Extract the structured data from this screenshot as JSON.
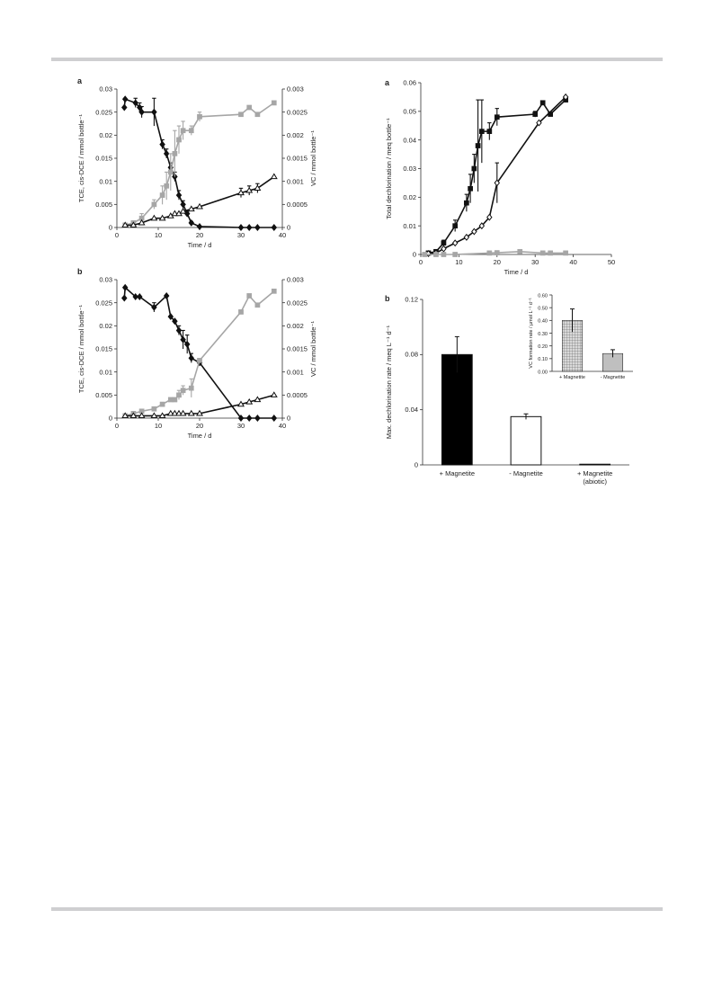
{
  "chart_data": [
    {
      "id": "top-left",
      "type": "line",
      "panel_label": "a",
      "xlabel": "Time / d",
      "ylabel": "TCE, cis-DCE / mmol bottle⁻¹",
      "y2label": "VC / mmol bottle⁻¹",
      "xlim": [
        0,
        40
      ],
      "ylim": [
        0,
        0.03
      ],
      "y2lim": [
        0,
        0.003
      ],
      "xticks": [
        "0",
        "10",
        "20",
        "30",
        "40"
      ],
      "yticks": [
        "0",
        "0.005",
        "0.01",
        "0.015",
        "0.02",
        "0.025",
        "0.03"
      ],
      "y2ticks": [
        "0",
        "0.0005",
        "0.001",
        "0.0015",
        "0.002",
        "0.0025",
        "0.003"
      ],
      "series": [
        {
          "axis": "y",
          "color": "#111111",
          "marker": "diamond",
          "points": [
            [
              1.8,
              0.026
            ],
            [
              2,
              0.0278
            ],
            [
              4.5,
              0.027
            ],
            [
              5.5,
              0.026
            ],
            [
              6,
              0.025
            ],
            [
              9,
              0.025
            ],
            [
              11,
              0.018
            ],
            [
              12,
              0.016
            ],
            [
              13,
              0.013
            ],
            [
              14,
              0.011
            ],
            [
              15,
              0.007
            ],
            [
              16,
              0.005
            ],
            [
              17,
              0.003
            ],
            [
              18,
              0.001
            ],
            [
              20,
              0.0002
            ],
            [
              30,
              0
            ],
            [
              32,
              0
            ],
            [
              34,
              0
            ],
            [
              38,
              0
            ]
          ],
          "err": [
            0,
            0,
            0.001,
            0.001,
            0.0012,
            0.003,
            0.001,
            0.001,
            0.001,
            0.001,
            0.001,
            0.0008,
            0.0005,
            0.0003,
            0,
            0,
            0,
            0,
            0
          ]
        },
        {
          "axis": "y2",
          "color": "#a6a6a6",
          "marker": "square",
          "points": [
            [
              2,
              5e-05
            ],
            [
              4,
              0.0001
            ],
            [
              6,
              0.0002
            ],
            [
              9,
              0.0005
            ],
            [
              11,
              0.0007
            ],
            [
              12,
              0.0009
            ],
            [
              13,
              0.0012
            ],
            [
              14,
              0.0016
            ],
            [
              15,
              0.0019
            ],
            [
              16,
              0.0021
            ],
            [
              18,
              0.0021
            ],
            [
              20,
              0.0024
            ],
            [
              30,
              0.00245
            ],
            [
              32,
              0.0026
            ],
            [
              34,
              0.00245
            ],
            [
              38,
              0.0027
            ]
          ],
          "err": [
            0,
            0,
            0.0001,
            0.0001,
            0.0002,
            0.0003,
            0.0004,
            0.0005,
            0.0003,
            0.0002,
            0.0001,
            0.0001,
            0,
            0,
            0,
            0
          ]
        },
        {
          "axis": "y2",
          "color": "#111111",
          "marker": "triangle-open",
          "points": [
            [
              2,
              5e-05
            ],
            [
              4,
              5e-05
            ],
            [
              6,
              0.0001
            ],
            [
              9,
              0.0002
            ],
            [
              11,
              0.0002
            ],
            [
              13,
              0.00025
            ],
            [
              14,
              0.0003
            ],
            [
              15,
              0.0003
            ],
            [
              16,
              0.00035
            ],
            [
              18,
              0.0004
            ],
            [
              20,
              0.00045
            ],
            [
              30,
              0.00075
            ],
            [
              32,
              0.0008
            ],
            [
              34,
              0.00085
            ],
            [
              38,
              0.0011
            ]
          ],
          "err": [
            0,
            0,
            0,
            0,
            0,
            0,
            0,
            0,
            0,
            0,
            0,
            0.0001,
            0.0001,
            0.0001,
            0
          ]
        }
      ]
    },
    {
      "id": "bottom-left",
      "type": "line",
      "panel_label": "b",
      "xlabel": "Time / d",
      "ylabel": "TCE, cis-DCE / mmol bottle⁻¹",
      "y2label": "VC / mmol bottle⁻¹",
      "xlim": [
        0,
        40
      ],
      "ylim": [
        0,
        0.03
      ],
      "y2lim": [
        0,
        0.003
      ],
      "xticks": [
        "0",
        "10",
        "20",
        "30",
        "40"
      ],
      "yticks": [
        "0",
        "0.005",
        "0.01",
        "0.015",
        "0.02",
        "0.025",
        "0.03"
      ],
      "y2ticks": [
        "0",
        "0.0005",
        "0.001",
        "0.0015",
        "0.002",
        "0.0025",
        "0.003"
      ],
      "series": [
        {
          "axis": "y",
          "color": "#111111",
          "marker": "diamond",
          "points": [
            [
              1.8,
              0.026
            ],
            [
              2,
              0.0283
            ],
            [
              4.5,
              0.0263
            ],
            [
              5.5,
              0.0263
            ],
            [
              9,
              0.024
            ],
            [
              12,
              0.0265
            ],
            [
              13,
              0.022
            ],
            [
              14,
              0.021
            ],
            [
              15,
              0.019
            ],
            [
              16,
              0.017
            ],
            [
              17,
              0.016
            ],
            [
              18,
              0.013
            ],
            [
              20,
              0.012
            ],
            [
              30,
              0
            ],
            [
              32,
              0
            ],
            [
              34,
              0
            ],
            [
              38,
              0
            ]
          ],
          "err": [
            0,
            0,
            0,
            0,
            0.001,
            0,
            0,
            0,
            0.001,
            0.002,
            0.002,
            0.001,
            0,
            0,
            0,
            0,
            0
          ]
        },
        {
          "axis": "y2",
          "color": "#a6a6a6",
          "marker": "square",
          "points": [
            [
              2,
              5e-05
            ],
            [
              4,
              0.0001
            ],
            [
              6,
              0.00015
            ],
            [
              9,
              0.0002
            ],
            [
              11,
              0.0003
            ],
            [
              13,
              0.0004
            ],
            [
              14,
              0.0004
            ],
            [
              15,
              0.0005
            ],
            [
              16,
              0.0006
            ],
            [
              18,
              0.00065
            ],
            [
              20,
              0.00125
            ],
            [
              30,
              0.0023
            ],
            [
              32,
              0.00265
            ],
            [
              34,
              0.00245
            ],
            [
              38,
              0.00275
            ]
          ],
          "err": [
            0,
            0,
            0,
            0,
            0,
            0,
            0,
            0.0001,
            0.0001,
            0.0002,
            0,
            0,
            0,
            0,
            0
          ]
        },
        {
          "axis": "y2",
          "color": "#111111",
          "marker": "triangle-open",
          "points": [
            [
              2,
              5e-05
            ],
            [
              4,
              5e-05
            ],
            [
              6,
              5e-05
            ],
            [
              9,
              5e-05
            ],
            [
              11,
              5e-05
            ],
            [
              13,
              0.0001
            ],
            [
              14,
              0.0001
            ],
            [
              15,
              0.0001
            ],
            [
              16,
              0.0001
            ],
            [
              18,
              0.0001
            ],
            [
              20,
              0.0001
            ],
            [
              30,
              0.0003
            ],
            [
              32,
              0.00035
            ],
            [
              34,
              0.0004
            ],
            [
              38,
              0.0005
            ]
          ],
          "err": [
            0,
            0,
            0,
            0,
            0,
            0,
            0,
            0,
            0,
            0,
            0,
            0,
            0,
            0,
            0
          ]
        }
      ]
    },
    {
      "id": "top-right",
      "type": "line",
      "panel_label": "a",
      "xlabel": "Time / d",
      "ylabel": "Total  dechlorination / meq bottle⁻¹",
      "xlim": [
        0,
        50
      ],
      "ylim": [
        0,
        0.06
      ],
      "xticks": [
        "0",
        "10",
        "20",
        "30",
        "40",
        "50"
      ],
      "yticks": [
        "0",
        "0.01",
        "0.02",
        "0.03",
        "0.04",
        "0.05",
        "0.06"
      ],
      "series": [
        {
          "color": "#111111",
          "marker": "square",
          "points": [
            [
              2,
              0.0005
            ],
            [
              4,
              0.001
            ],
            [
              6,
              0.004
            ],
            [
              9,
              0.01
            ],
            [
              12,
              0.018
            ],
            [
              13,
              0.023
            ],
            [
              14,
              0.03
            ],
            [
              15,
              0.038
            ],
            [
              16,
              0.043
            ],
            [
              18,
              0.043
            ],
            [
              20,
              0.048
            ],
            [
              30,
              0.049
            ],
            [
              32,
              0.053
            ],
            [
              34,
              0.049
            ],
            [
              38,
              0.054
            ]
          ],
          "err": [
            0,
            0,
            0.001,
            0.002,
            0.003,
            0.005,
            0.005,
            0.016,
            0.011,
            0.003,
            0.003,
            0.001,
            0,
            0,
            0
          ]
        },
        {
          "color": "#111111",
          "marker": "diamond-open",
          "points": [
            [
              2,
              0.0003
            ],
            [
              4,
              0.0005
            ],
            [
              6,
              0.002
            ],
            [
              9,
              0.004
            ],
            [
              12,
              0.006
            ],
            [
              14,
              0.008
            ],
            [
              16,
              0.01
            ],
            [
              18,
              0.013
            ],
            [
              20,
              0.025
            ],
            [
              31,
              0.046
            ],
            [
              38,
              0.055
            ]
          ],
          "err": [
            0,
            0,
            0,
            0,
            0,
            0,
            0,
            0,
            0.007,
            0,
            0
          ]
        },
        {
          "color": "#a6a6a6",
          "marker": "square",
          "points": [
            [
              1,
              0
            ],
            [
              4,
              0
            ],
            [
              6,
              0
            ],
            [
              9,
              0
            ],
            [
              18,
              0.0005
            ],
            [
              20,
              0.0006
            ],
            [
              26,
              0.001
            ],
            [
              32,
              0.0005
            ],
            [
              34,
              0.0005
            ],
            [
              38,
              0.0005
            ]
          ],
          "err": [
            0,
            0,
            0,
            0,
            0,
            0,
            0,
            0,
            0,
            0
          ]
        }
      ]
    },
    {
      "id": "bottom-right",
      "type": "bar",
      "panel_label": "b",
      "ylabel": "Max. dechlorination rate / meq L⁻¹ d⁻¹",
      "ylim": [
        0,
        0.12
      ],
      "yticks": [
        "0",
        "0.04",
        "0.08",
        "0.12"
      ],
      "categories": [
        "+ Magnetite",
        "- Magnetite",
        "+ Magnetite\n(abiotic)"
      ],
      "values": [
        0.08,
        0.035,
        0.0005
      ],
      "errors": [
        0.013,
        0.002,
        0
      ],
      "fills": [
        "#000000",
        "#ffffff",
        "#ffffff"
      ]
    },
    {
      "id": "inset",
      "type": "bar",
      "ylabel": "VC formation rate / µmol L⁻¹ d⁻¹",
      "ylim": [
        0,
        0.6
      ],
      "yticks": [
        "0.00",
        "0.10",
        "0.20",
        "0.30",
        "0.40",
        "0.50",
        "0.60"
      ],
      "categories": [
        "+ Magnetite",
        "- Magnetite"
      ],
      "values": [
        0.4,
        0.14
      ],
      "errors": [
        0.09,
        0.03
      ],
      "fills": [
        "hatch",
        "#bfbfbf"
      ]
    }
  ]
}
